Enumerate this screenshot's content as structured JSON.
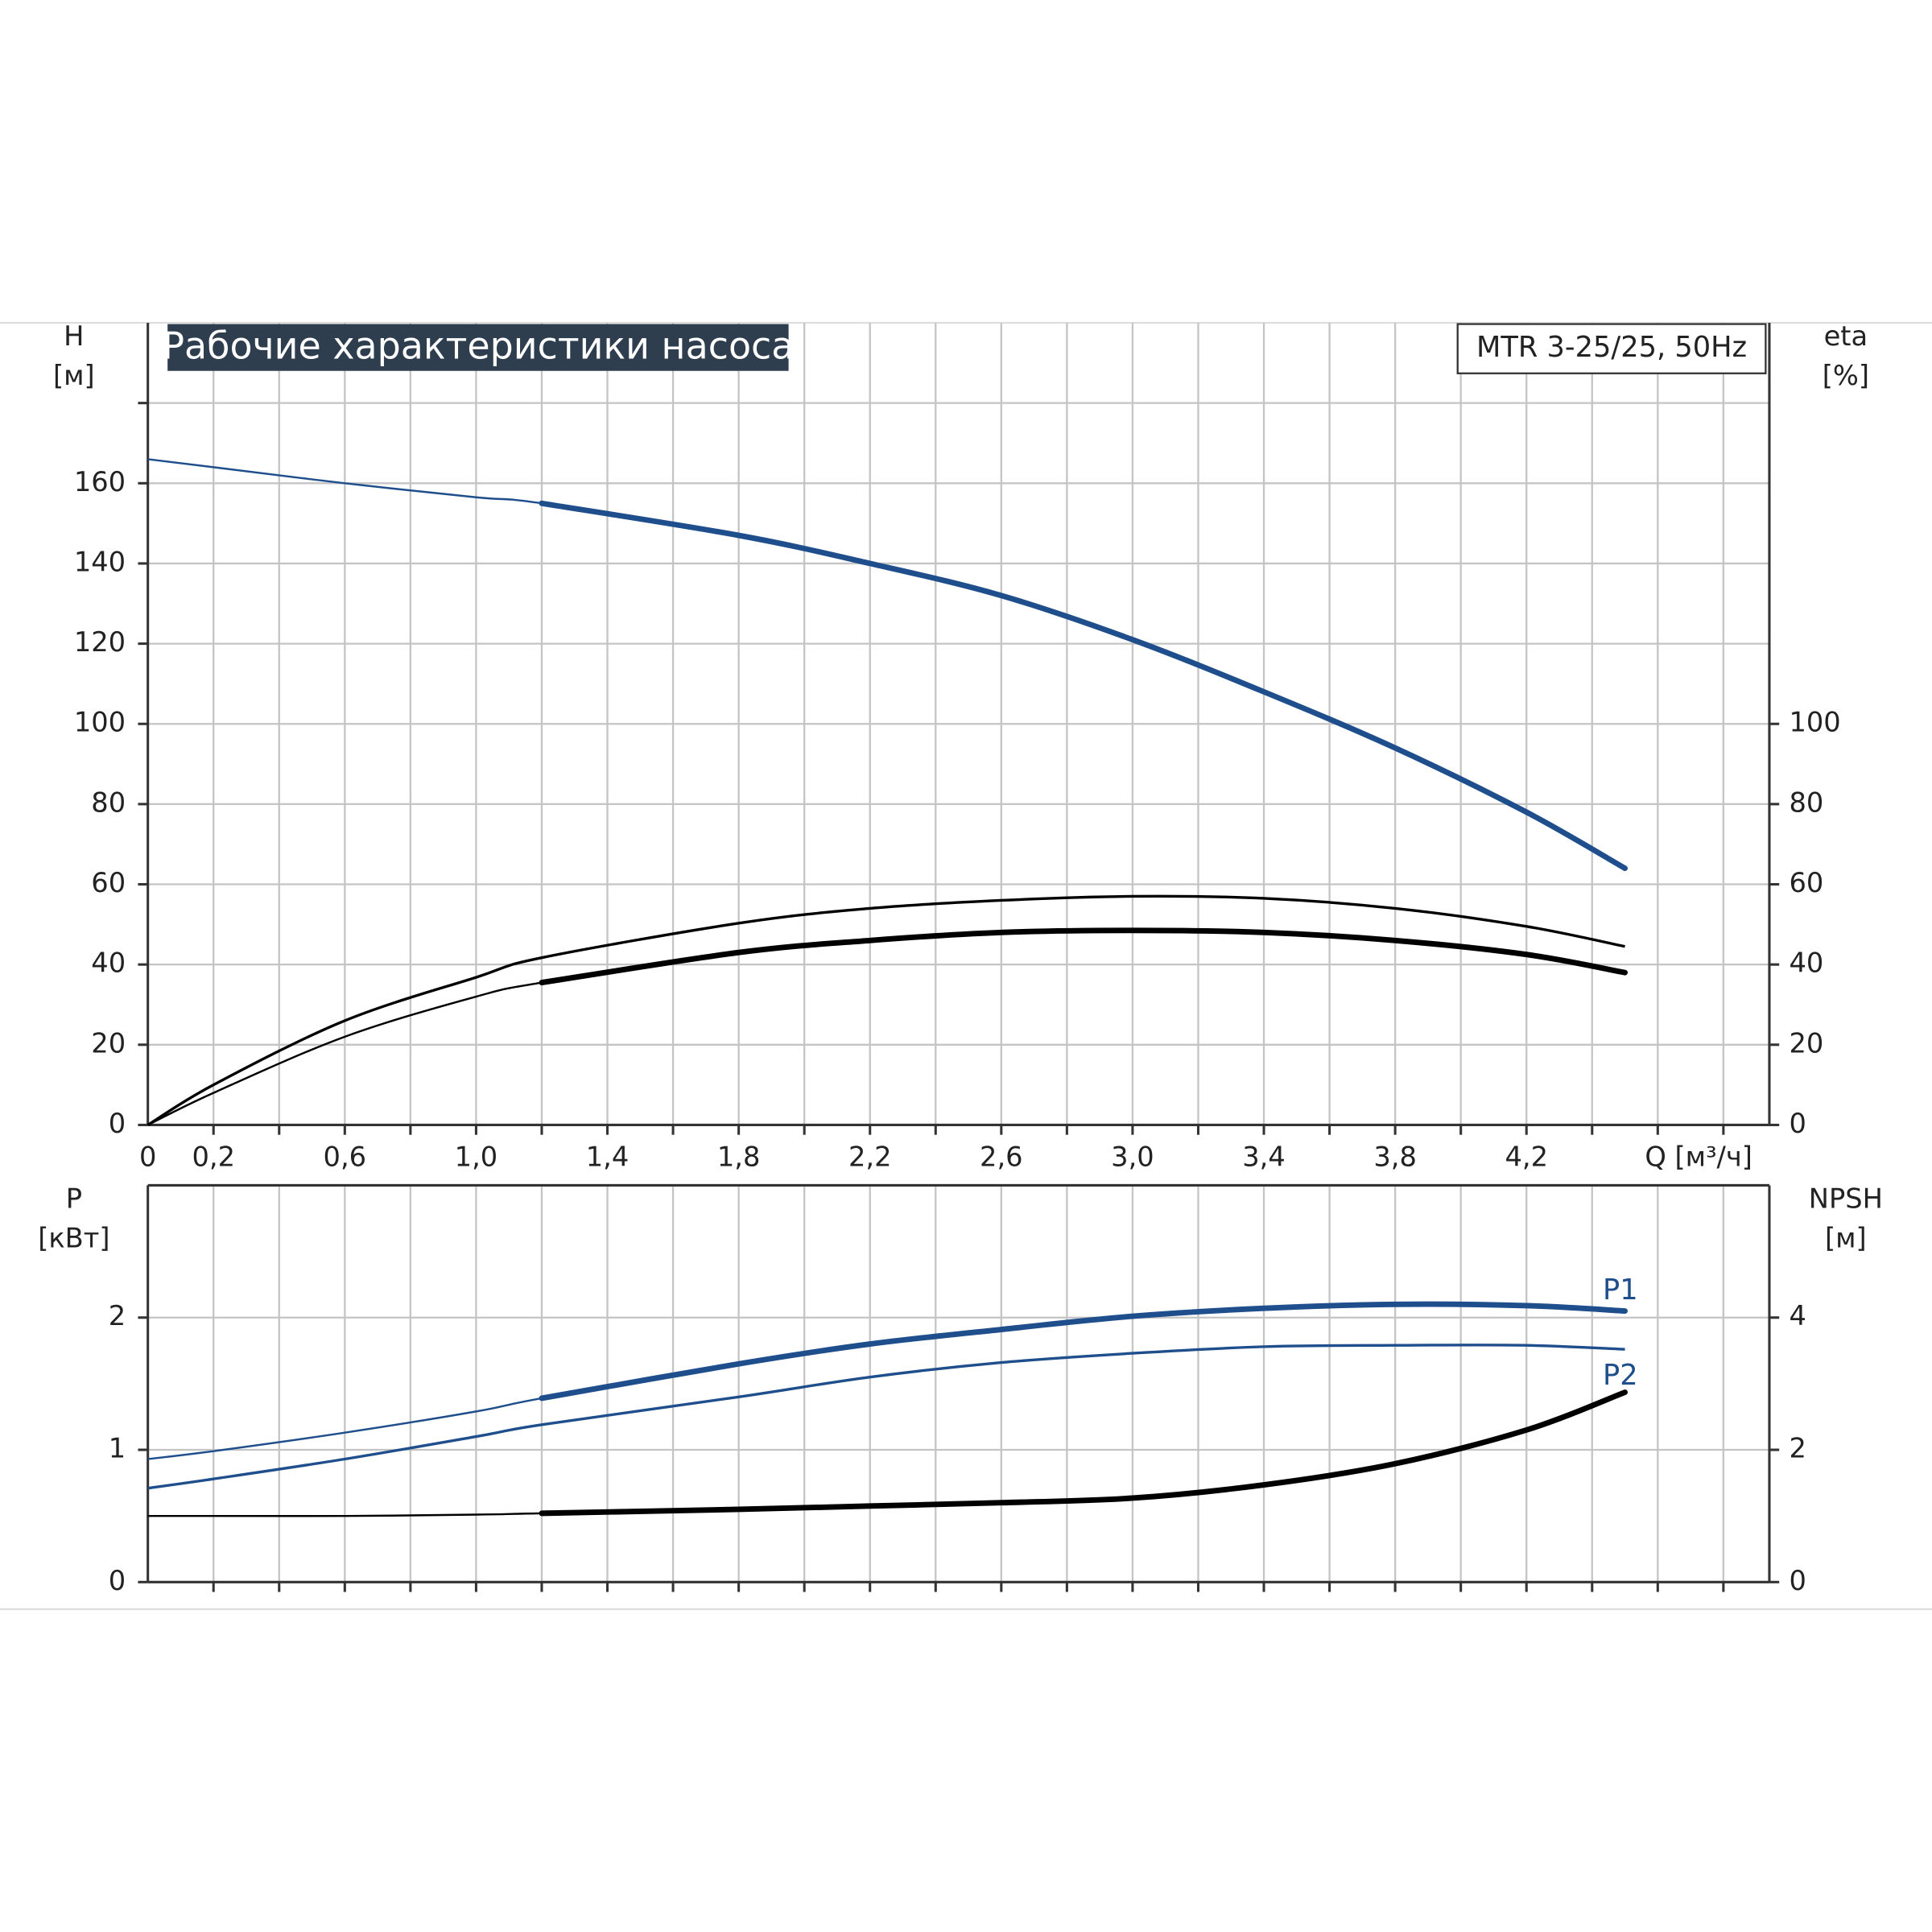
{
  "chart_data": [
    {
      "type": "line",
      "title": "Рабочие характеристики насоса",
      "model": "MTR 3-25/25, 50Hz",
      "ylabel": "H",
      "yunit": "[м]",
      "y2label": "eta",
      "y2unit": "[%]",
      "xlabel": "Q [м³/ч]",
      "xlim": [
        0,
        4.94
      ],
      "xticks": [
        0,
        {
          "value": 0.2,
          "label": "0,2"
        },
        {
          "value": 0.6,
          "label": "0,6"
        },
        {
          "value": 1.0,
          "label": "1,0"
        },
        {
          "value": 1.4,
          "label": "1,4"
        },
        {
          "value": 1.8,
          "label": "1,8"
        },
        {
          "value": 2.2,
          "label": "2,2"
        },
        {
          "value": 2.6,
          "label": "2,6"
        },
        {
          "value": 3.0,
          "label": "3,0"
        },
        {
          "value": 3.4,
          "label": "3,4"
        },
        {
          "value": 3.8,
          "label": "3,8"
        },
        {
          "value": 4.2,
          "label": "4,2"
        }
      ],
      "xgrid": [
        0.2,
        0.4,
        0.6,
        0.8,
        1.0,
        1.2,
        1.4,
        1.6,
        1.8,
        2.0,
        2.2,
        2.4,
        2.6,
        2.8,
        3.0,
        3.2,
        3.4,
        3.6,
        3.8,
        4.0,
        4.2,
        4.4,
        4.6,
        4.8
      ],
      "ylim": [
        0,
        200
      ],
      "yticks": [
        0,
        20,
        40,
        60,
        80,
        100,
        120,
        140,
        160
      ],
      "ygrid": [
        180
      ],
      "y2lim": [
        0,
        200
      ],
      "y2ticks": [
        0,
        20,
        40,
        60,
        80,
        100
      ],
      "thick_from_x": 1.2,
      "x": [
        0,
        0.2,
        0.6,
        1.0,
        1.2,
        1.8,
        2.2,
        2.6,
        3.0,
        3.4,
        3.8,
        4.2,
        4.5
      ],
      "series": [
        {
          "color": "#1f4e8c",
          "thick": true,
          "values": [
            166,
            164,
            160,
            156.5,
            155,
            147,
            140,
            132,
            121,
            108,
            94,
            78,
            64
          ]
        },
        {
          "color": "#000000",
          "thick": false,
          "axis": "y2",
          "values": [
            0,
            10,
            26,
            36.8,
            41.7,
            50.3,
            54,
            56,
            57,
            56.5,
            54,
            49.5,
            44.5
          ]
        },
        {
          "color": "#000000",
          "thick": true,
          "axis": "y2",
          "values": [
            0,
            8,
            22,
            32,
            35.5,
            43,
            46,
            48,
            48.5,
            48,
            46,
            42.5,
            38
          ]
        }
      ]
    },
    {
      "type": "line",
      "ylabel": "P",
      "yunit": "[кВт]",
      "y2label": "NPSH",
      "y2unit": "[м]",
      "xlim": [
        0,
        4.94
      ],
      "xgrid": [
        0.2,
        0.4,
        0.6,
        0.8,
        1.0,
        1.2,
        1.4,
        1.6,
        1.8,
        2.0,
        2.2,
        2.4,
        2.6,
        2.8,
        3.0,
        3.2,
        3.4,
        3.6,
        3.8,
        4.0,
        4.2,
        4.4,
        4.6,
        4.8
      ],
      "ylim": [
        0,
        3
      ],
      "yticks": [
        0,
        1,
        2
      ],
      "y2lim": [
        0,
        6
      ],
      "y2ticks": [
        0,
        2,
        4
      ],
      "thick_from_x": 1.2,
      "x": [
        0,
        0.2,
        0.6,
        1.0,
        1.2,
        1.8,
        2.2,
        2.6,
        3.0,
        3.4,
        3.8,
        4.2,
        4.5
      ],
      "series": [
        {
          "name": "P1",
          "color": "#1f4e8c",
          "thick": true,
          "values": [
            0.93,
            0.99,
            1.13,
            1.29,
            1.39,
            1.65,
            1.8,
            1.91,
            2.01,
            2.07,
            2.1,
            2.09,
            2.05
          ]
        },
        {
          "name": "P2",
          "color": "#1f4e8c",
          "thick": false,
          "values": [
            0.71,
            0.78,
            0.93,
            1.1,
            1.19,
            1.4,
            1.55,
            1.66,
            1.73,
            1.78,
            1.79,
            1.79,
            1.76
          ]
        },
        {
          "color": "#000000",
          "thick": true,
          "axis": "y2",
          "values": [
            1.0,
            1.0,
            1.0,
            1.02,
            1.04,
            1.1,
            1.15,
            1.2,
            1.27,
            1.47,
            1.79,
            2.3,
            2.87
          ]
        }
      ]
    }
  ]
}
